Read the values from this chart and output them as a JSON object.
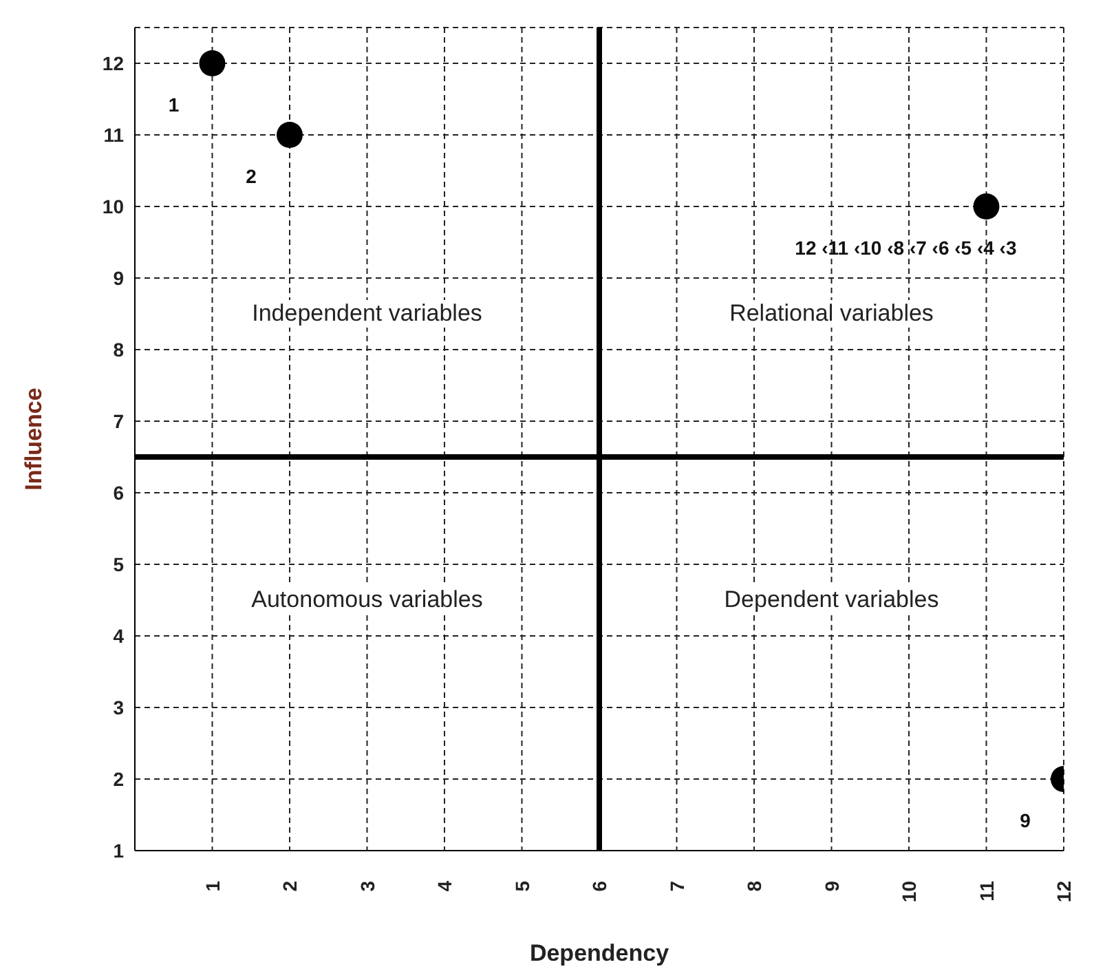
{
  "chart_data": {
    "type": "scatter",
    "xlabel": "Dependency",
    "ylabel": "Influence",
    "x": [
      1,
      2,
      11,
      12
    ],
    "series": [
      {
        "color": "#000000",
        "values": [
          12,
          11,
          10,
          2
        ]
      }
    ],
    "xlim": [
      0,
      12
    ],
    "xticks": [
      1,
      2,
      3,
      4,
      5,
      6,
      7,
      8,
      9,
      10,
      11,
      12
    ],
    "ylim": [
      1,
      12.5
    ],
    "yticks": [
      1,
      2,
      3,
      4,
      5,
      6,
      7,
      8,
      9,
      10,
      11,
      12
    ],
    "ref_lines": [
      {
        "axis": "x",
        "value": 6,
        "color": "#000000"
      },
      {
        "axis": "y",
        "value": 6.5,
        "color": "#000000"
      }
    ],
    "annotations": [
      "Independent variables",
      "Relational variables",
      "Autonomous variables",
      "Dependent variables",
      {
        "text": "1",
        "x": 1,
        "y": 12
      },
      {
        "text": "2",
        "x": 2,
        "y": 11
      },
      {
        "text": "12 ‹11 ‹10 ‹8 ‹7 ‹6 ‹5 ‹4 ‹3",
        "x": 11,
        "y": 10
      },
      {
        "text": "9",
        "x": 12,
        "y": 2
      }
    ],
    "grid": true,
    "legend": false,
    "marker": "circle"
  }
}
